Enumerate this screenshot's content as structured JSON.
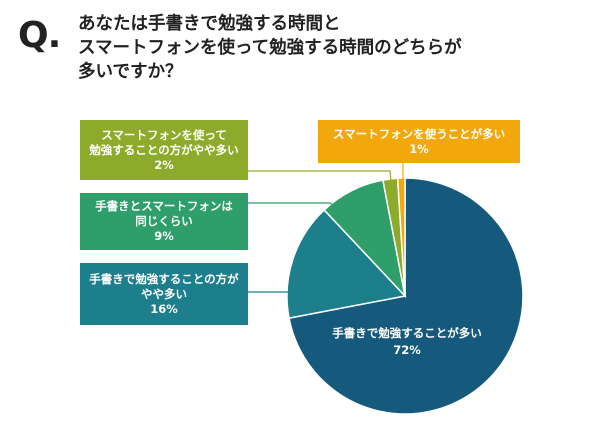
{
  "question": {
    "mark": "Q.",
    "lines": [
      "あなたは手書きで勉強する時間と",
      "スマートフォンを使って勉強する時間のどちらが",
      "多いですか？"
    ]
  },
  "chart_data": {
    "type": "pie",
    "title": "あなたは手書きで勉強する時間とスマートフォンを使って勉強する時間のどちらが多いですか？",
    "slices": [
      {
        "label": "手書きで勉強することが多い",
        "value": 72,
        "value_label": "72%",
        "color": "#155a7d"
      },
      {
        "label": "手書きで勉強することの方がやや多い",
        "value": 16,
        "value_label": "16%",
        "color": "#1c7f8b"
      },
      {
        "label": "手書きとスマートフォンは同じくらい",
        "value": 9,
        "value_label": "9%",
        "color": "#2e9e6b"
      },
      {
        "label": "スマートフォンを使ってて勉強することの方がやや多い",
        "value": 2,
        "value_label": "2%",
        "color": "#8cab2a"
      },
      {
        "label": "スマートフォンを使うことが多い",
        "value": 1,
        "value_label": "1%",
        "color": "#f2a70c"
      }
    ],
    "start": "12 o'clock",
    "direction": "clockwise"
  },
  "callouts": [
    {
      "lines": [
        "スマートフォンを使って",
        "勉強することの方がやや多い"
      ],
      "value": "2%",
      "color": "#8cab2a"
    },
    {
      "lines": [
        "手書きとスマートフォンは",
        "同じくらい"
      ],
      "value": "9%",
      "color": "#2e9e6b"
    },
    {
      "lines": [
        "手書きで勉強することの方が",
        "やや多い"
      ],
      "value": "16%",
      "color": "#1c7f8b"
    },
    {
      "lines": [
        "スマートフォンを使うことが多い"
      ],
      "value": "1%",
      "color": "#f2a70c"
    }
  ],
  "inside_label": {
    "text": "手書きで勉強することが多い",
    "value": "72%"
  }
}
